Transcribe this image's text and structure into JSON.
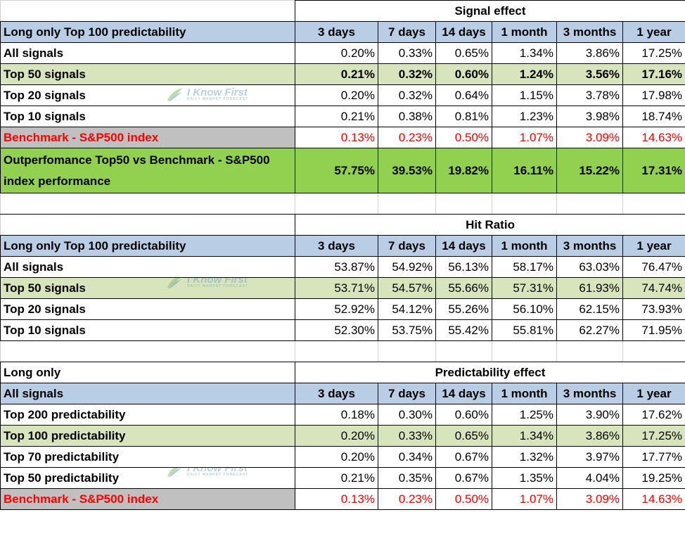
{
  "watermark": {
    "brand": "I Know First",
    "tagline": "DAILY MARKET FORECAST",
    "icon": "leaf-logo-icon"
  },
  "colors": {
    "header_blue": "#b9cde5",
    "highlight_green": "#d8e4bc",
    "outperform_green": "#92d050",
    "benchmark_gray": "#c0c0c0",
    "benchmark_red": "#ff0000"
  },
  "columns": [
    "3 days",
    "7 days",
    "14 days",
    "1 month",
    "3 months",
    "1 year"
  ],
  "signal_effect": {
    "title": "Signal effect",
    "header_label": "Long only Top 100 predictability",
    "rows": [
      {
        "label": "All signals",
        "values": [
          "0.20%",
          "0.33%",
          "0.65%",
          "1.34%",
          "3.86%",
          "17.25%"
        ]
      },
      {
        "label": "Top 50 signals",
        "values": [
          "0.21%",
          "0.32%",
          "0.60%",
          "1.24%",
          "3.56%",
          "17.16%"
        ]
      },
      {
        "label": "Top 20 signals",
        "values": [
          "0.20%",
          "0.32%",
          "0.64%",
          "1.15%",
          "3.78%",
          "17.98%"
        ]
      },
      {
        "label": "Top 10 signals",
        "values": [
          "0.21%",
          "0.38%",
          "0.81%",
          "1.23%",
          "3.98%",
          "18.74%"
        ]
      },
      {
        "label": "Benchmark - S&P500 index",
        "values": [
          "0.13%",
          "0.23%",
          "0.50%",
          "1.07%",
          "3.09%",
          "14.63%"
        ]
      }
    ],
    "outperformance": {
      "label": "Outperfomance Top50 vs Benchmark - S&P500 index performance",
      "values": [
        "57.75%",
        "39.53%",
        "19.82%",
        "16.11%",
        "15.22%",
        "17.31%"
      ]
    }
  },
  "hit_ratio": {
    "title": "Hit Ratio",
    "header_label": "Long only Top 100 predictability",
    "rows": [
      {
        "label": "All signals",
        "values": [
          "53.87%",
          "54.92%",
          "56.13%",
          "58.17%",
          "63.03%",
          "76.47%"
        ]
      },
      {
        "label": "Top 50 signals",
        "values": [
          "53.71%",
          "54.57%",
          "55.66%",
          "57.31%",
          "61.93%",
          "74.74%"
        ]
      },
      {
        "label": "Top 20 signals",
        "values": [
          "52.92%",
          "54.12%",
          "55.26%",
          "56.10%",
          "62.15%",
          "73.93%"
        ]
      },
      {
        "label": "Top 10 signals",
        "values": [
          "52.30%",
          "53.75%",
          "55.42%",
          "55.81%",
          "62.27%",
          "71.95%"
        ]
      }
    ]
  },
  "predictability_effect": {
    "title_label": "Long only",
    "title": "Predictability effect",
    "header_label": "All signals",
    "rows": [
      {
        "label": "Top 200 predictability",
        "values": [
          "0.18%",
          "0.30%",
          "0.60%",
          "1.25%",
          "3.90%",
          "17.62%"
        ]
      },
      {
        "label": "Top 100 predictability",
        "values": [
          "0.20%",
          "0.33%",
          "0.65%",
          "1.34%",
          "3.86%",
          "17.25%"
        ]
      },
      {
        "label": "Top 70 predictability",
        "values": [
          "0.20%",
          "0.34%",
          "0.67%",
          "1.32%",
          "3.97%",
          "17.77%"
        ]
      },
      {
        "label": "Top 50 predictability",
        "values": [
          "0.21%",
          "0.35%",
          "0.67%",
          "1.35%",
          "4.04%",
          "19.25%"
        ]
      },
      {
        "label": "Benchmark - S&P500 index",
        "values": [
          "0.13%",
          "0.23%",
          "0.50%",
          "1.07%",
          "3.09%",
          "14.63%"
        ]
      }
    ]
  }
}
